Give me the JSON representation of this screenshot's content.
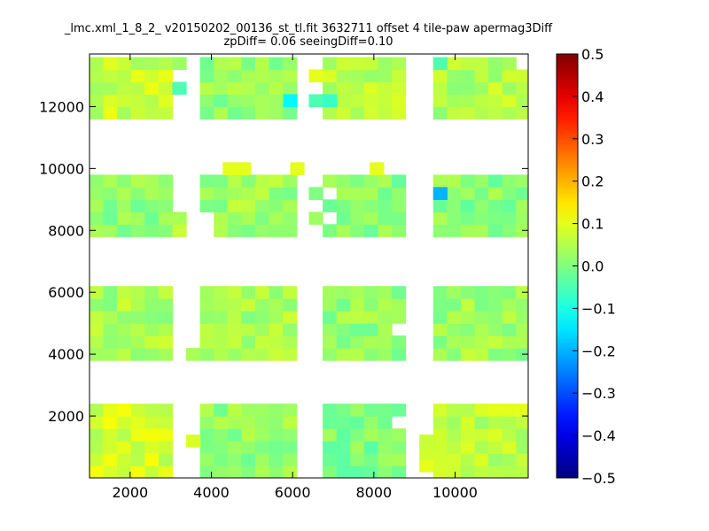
{
  "chart_data": {
    "type": "heatmap",
    "title": "_lmc.xml_1_8_2_ v20150202_00136_st_tl.fit 3632711 offset 4 tile-paw apermag3Diff",
    "subtitle": "zpDiff= 0.06 seeingDiff=0.10",
    "xlabel": "",
    "ylabel": "",
    "xlim": [
      1000,
      11800
    ],
    "ylim": [
      0,
      13700
    ],
    "x_ticks": [
      2000,
      4000,
      6000,
      8000,
      10000
    ],
    "y_ticks": [
      2000,
      4000,
      6000,
      8000,
      10000,
      12000
    ],
    "colorbar": {
      "range": [
        -0.5,
        0.5
      ],
      "ticks": [
        0.5,
        0.4,
        0.3,
        0.2,
        0.1,
        0.0,
        -0.1,
        -0.2,
        -0.3,
        -0.4,
        -0.5
      ],
      "tick_labels": [
        "0.5",
        "0.4",
        "0.3",
        "0.2",
        "0.1",
        "0.0",
        "−0.1",
        "−0.2",
        "−0.3",
        "−0.4",
        "−0.5"
      ],
      "colormap": "jet"
    },
    "grid": false,
    "cell_width": 340,
    "cell_height": 400,
    "regions": [
      {
        "x0": 1000,
        "x1": 3040,
        "y0": 11600,
        "y1": 13600,
        "base": 0.07
      },
      {
        "x0": 3720,
        "x1": 6100,
        "y0": 11600,
        "y1": 13600,
        "base": 0.02
      },
      {
        "x0": 6740,
        "x1": 8780,
        "y0": 11600,
        "y1": 13600,
        "base": 0.05
      },
      {
        "x0": 9460,
        "x1": 11840,
        "y0": 11600,
        "y1": 13600,
        "base": 0.05
      },
      {
        "x0": 1000,
        "x1": 3040,
        "y0": 7800,
        "y1": 9800,
        "base": 0.02
      },
      {
        "x0": 3720,
        "x1": 6100,
        "y0": 7800,
        "y1": 9800,
        "base": 0.03
      },
      {
        "x0": 6740,
        "x1": 8780,
        "y0": 7800,
        "y1": 9800,
        "base": 0.01
      },
      {
        "x0": 9460,
        "x1": 11840,
        "y0": 7800,
        "y1": 9800,
        "base": 0.01
      },
      {
        "x0": 1000,
        "x1": 3040,
        "y0": 3800,
        "y1": 6000,
        "base": 0.04
      },
      {
        "x0": 3720,
        "x1": 6100,
        "y0": 3800,
        "y1": 6000,
        "base": 0.04
      },
      {
        "x0": 6740,
        "x1": 8780,
        "y0": 3800,
        "y1": 6000,
        "base": 0.02
      },
      {
        "x0": 9460,
        "x1": 11840,
        "y0": 3800,
        "y1": 6000,
        "base": 0.03
      },
      {
        "x0": 1000,
        "x1": 3040,
        "y0": 0,
        "y1": 2200,
        "base": 0.08
      },
      {
        "x0": 3720,
        "x1": 6100,
        "y0": 0,
        "y1": 2200,
        "base": 0.02
      },
      {
        "x0": 6740,
        "x1": 8780,
        "y0": 0,
        "y1": 2200,
        "base": 0.0
      },
      {
        "x0": 9460,
        "x1": 11840,
        "y0": 0,
        "y1": 2200,
        "base": 0.06
      }
    ],
    "extra_cells": [
      {
        "x": 4280,
        "y": 9800,
        "value": 0.1
      },
      {
        "x": 4620,
        "y": 9800,
        "value": 0.1
      },
      {
        "x": 5940,
        "y": 9800,
        "value": 0.1
      },
      {
        "x": 7900,
        "y": 9800,
        "value": 0.1
      },
      {
        "x": 9460,
        "y": 9000,
        "value": -0.2
      },
      {
        "x": 6400,
        "y": 9000,
        "value": 0.0
      },
      {
        "x": 6400,
        "y": 8200,
        "value": 0.03
      },
      {
        "x": 3040,
        "y": 7800,
        "value": 0.07
      },
      {
        "x": 3040,
        "y": 8200,
        "value": 0.04
      },
      {
        "x": 6400,
        "y": 12800,
        "value": 0.1
      },
      {
        "x": 6400,
        "y": 12000,
        "value": -0.05
      },
      {
        "x": 3040,
        "y": 12400,
        "value": -0.05
      },
      {
        "x": 3040,
        "y": 13200,
        "value": 0.03
      },
      {
        "x": 3380,
        "y": 3800,
        "value": 0.04
      },
      {
        "x": 3380,
        "y": 1000,
        "value": 0.09
      },
      {
        "x": 9120,
        "y": 200,
        "value": 0.1
      },
      {
        "x": 9120,
        "y": 600,
        "value": 0.08
      },
      {
        "x": 9120,
        "y": 1000,
        "value": 0.07
      }
    ],
    "holes": [
      {
        "x": 3040,
        "y": 12400
      },
      {
        "x": 3040,
        "y": 13200
      },
      {
        "x": 3040,
        "y": 11600
      },
      {
        "x": 3720,
        "y": 7800
      },
      {
        "x": 3720,
        "y": 8200
      },
      {
        "x": 8440,
        "y": 5200
      },
      {
        "x": 8440,
        "y": 4600
      },
      {
        "x": 3720,
        "y": 600
      },
      {
        "x": 3720,
        "y": 200
      },
      {
        "x": 8440,
        "y": 1600
      },
      {
        "x": 8440,
        "y": 200
      },
      {
        "x": 6740,
        "y": 8200
      },
      {
        "x": 6740,
        "y": 9000
      },
      {
        "x": 11500,
        "y": 13200
      }
    ],
    "highlights": [
      {
        "x": 5770,
        "y": 12000,
        "value": -0.13
      },
      {
        "x": 6740,
        "y": 12000,
        "value": -0.07
      },
      {
        "x": 9460,
        "y": 13200,
        "value": -0.05
      }
    ]
  }
}
